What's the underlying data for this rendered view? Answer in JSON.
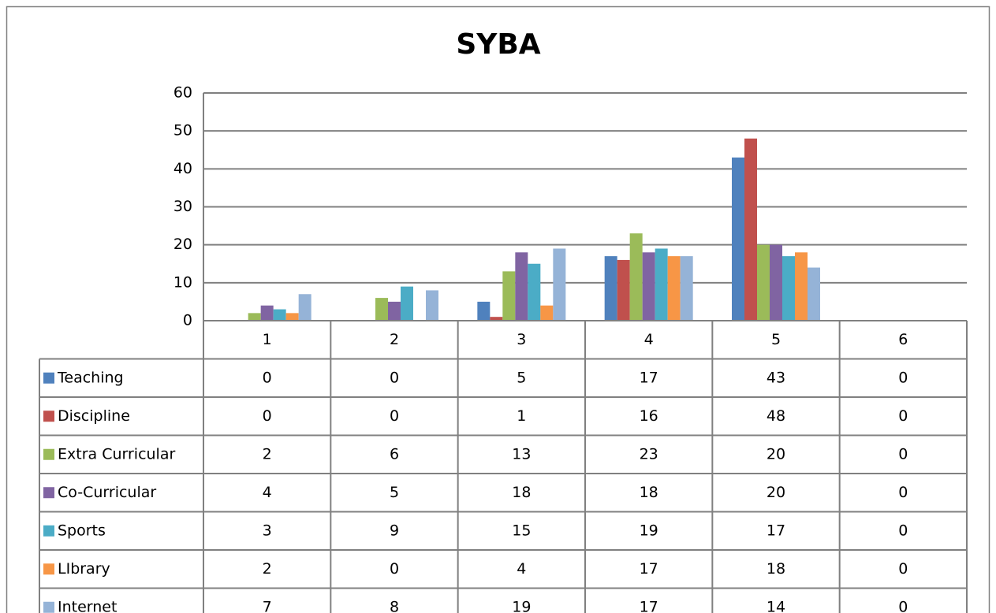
{
  "chart_data": {
    "type": "bar",
    "title": "SYBA",
    "categories": [
      "1",
      "2",
      "3",
      "4",
      "5",
      "6"
    ],
    "series": [
      {
        "name": "Teaching",
        "color": "#4f81bd",
        "values": [
          0,
          0,
          5,
          17,
          43,
          0
        ]
      },
      {
        "name": "Discipline",
        "color": "#c0504d",
        "values": [
          0,
          0,
          1,
          16,
          48,
          0
        ]
      },
      {
        "name": "Extra Curricular",
        "color": "#9bbb59",
        "values": [
          2,
          6,
          13,
          23,
          20,
          0
        ]
      },
      {
        "name": "Co-Curricular",
        "color": "#8064a2",
        "values": [
          4,
          5,
          18,
          18,
          20,
          0
        ]
      },
      {
        "name": "Sports",
        "color": "#4bacc6",
        "values": [
          3,
          9,
          15,
          19,
          17,
          0
        ]
      },
      {
        "name": "LIbrary",
        "color": "#f79646",
        "values": [
          2,
          0,
          4,
          17,
          18,
          0
        ]
      },
      {
        "name": "Internet",
        "color": "#95b3d7",
        "values": [
          7,
          8,
          19,
          17,
          14,
          0
        ]
      }
    ],
    "ylim": [
      0,
      60
    ],
    "yticks": [
      0,
      10,
      20,
      30,
      40,
      50,
      60
    ],
    "grid": true
  }
}
